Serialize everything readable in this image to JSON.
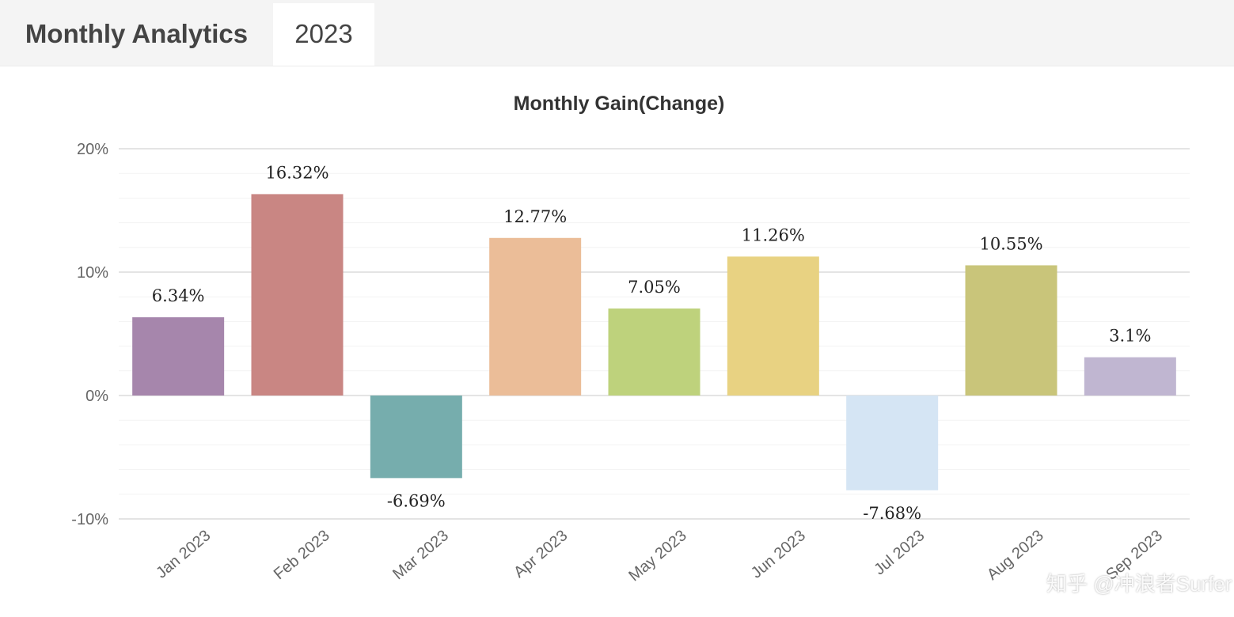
{
  "tabs": [
    {
      "label": "Monthly Analytics",
      "active": false
    },
    {
      "label": "2023",
      "active": true
    }
  ],
  "watermark": "知乎 @冲浪者Surfer",
  "chart_data": {
    "type": "bar",
    "title": "Monthly Gain(Change)",
    "xlabel": "",
    "ylabel": "",
    "categories": [
      "Jan 2023",
      "Feb 2023",
      "Mar 2023",
      "Apr 2023",
      "May 2023",
      "Jun 2023",
      "Jul 2023",
      "Aug 2023",
      "Sep 2023"
    ],
    "values": [
      6.34,
      16.32,
      -6.69,
      12.77,
      7.05,
      11.26,
      -7.68,
      10.55,
      3.1
    ],
    "data_labels": [
      "6.34%",
      "16.32%",
      "-6.69%",
      "12.77%",
      "7.05%",
      "11.26%",
      "-7.68%",
      "10.55%",
      "3.1%"
    ],
    "colors": [
      "#a686ac",
      "#c98683",
      "#76adad",
      "#ebbd98",
      "#bed27c",
      "#e8d282",
      "#d5e5f4",
      "#c9c57a",
      "#c0b6d1"
    ],
    "ylim": [
      -10,
      20
    ],
    "yticks": [
      20,
      10,
      0,
      -10
    ],
    "ytick_labels": [
      "20%",
      "10%",
      "0%",
      "-10%"
    ],
    "grid": true,
    "legend": "none"
  }
}
